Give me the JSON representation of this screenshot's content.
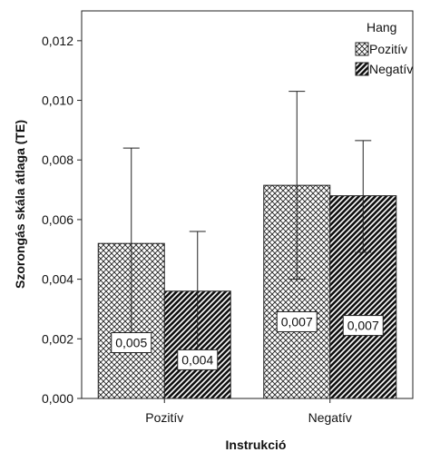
{
  "chart_data": {
    "type": "bar",
    "xlabel": "Instrukció",
    "ylabel": "Szorongás skála átlaga (TE)",
    "categories": [
      "Pozitív",
      "Negatív"
    ],
    "ylim": [
      0,
      0.013
    ],
    "yticks": [
      0.0,
      0.002,
      0.004,
      0.006,
      0.008,
      0.01,
      0.012
    ],
    "ytick_labels": [
      "0,000",
      "0,002",
      "0,004",
      "0,006",
      "0,008",
      "0,010",
      "0,012"
    ],
    "legend": {
      "title": "Hang",
      "position": "top-right",
      "entries": [
        "Pozitív",
        "Negatív"
      ]
    },
    "grid": false,
    "error_bars": true,
    "series": [
      {
        "name": "Pozitív",
        "pattern": "crosshatch",
        "values": [
          0.0052,
          0.00715
        ],
        "error_low": [
          0.0021,
          0.004
        ],
        "error_high": [
          0.0084,
          0.0103
        ],
        "data_labels": [
          "0,005",
          "0,007"
        ]
      },
      {
        "name": "Negatív",
        "pattern": "diagonal",
        "values": [
          0.0036,
          0.0068
        ],
        "error_low": [
          0.0016,
          0.0049
        ],
        "error_high": [
          0.0056,
          0.00865
        ],
        "data_labels": [
          "0,004",
          "0,007"
        ]
      }
    ]
  }
}
